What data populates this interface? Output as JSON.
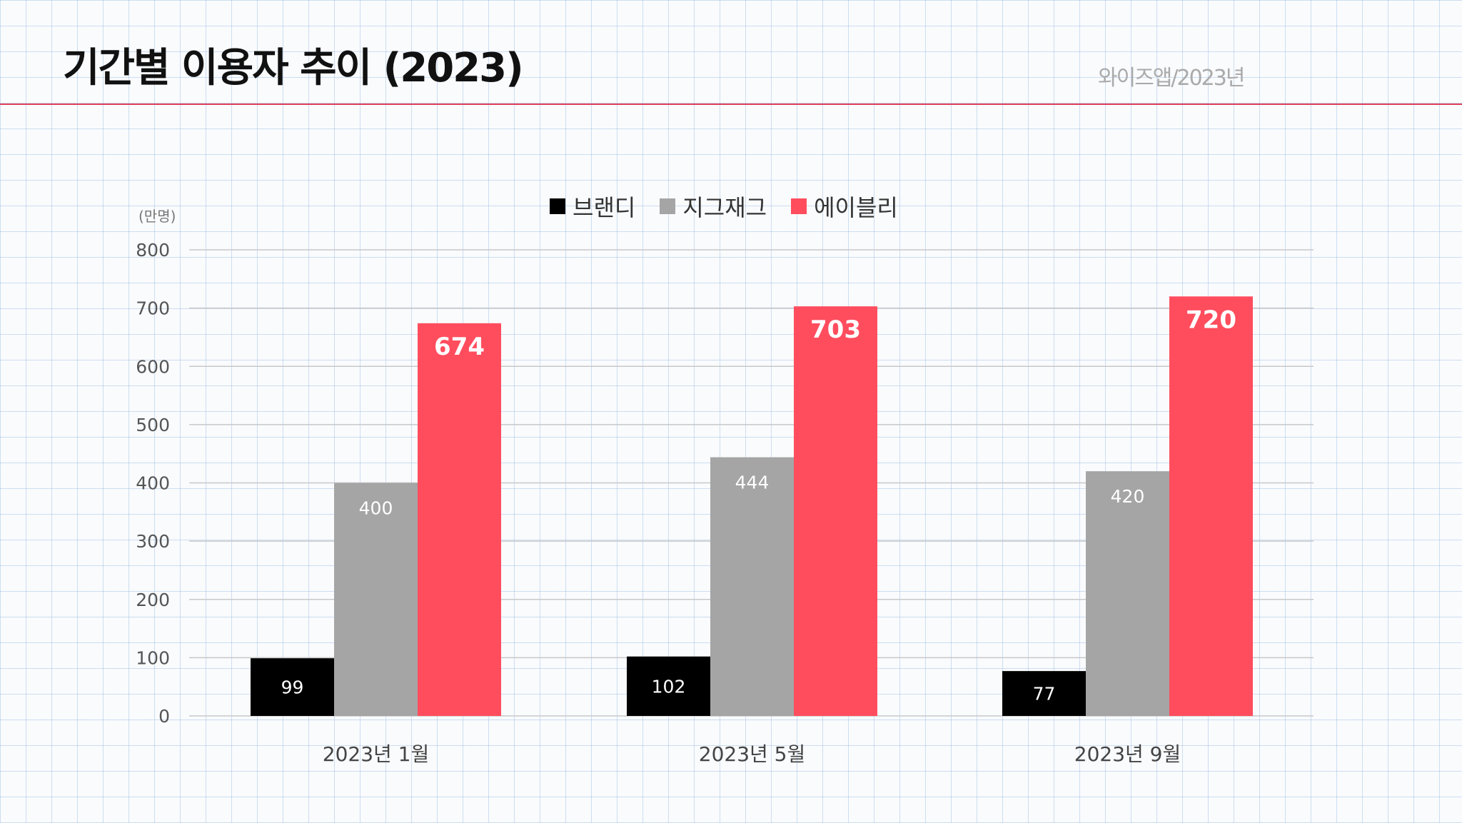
{
  "header": {
    "title": "기간별 이용자 추이 (2023)",
    "source": "와이즈앱/2023년"
  },
  "chart_data": {
    "type": "bar",
    "title": "기간별 이용자 추이 (2023)",
    "ylabel": "(만명)",
    "ylim": [
      0,
      800
    ],
    "yticks": [
      0,
      100,
      200,
      300,
      400,
      500,
      600,
      700,
      800
    ],
    "grid": true,
    "legend": "top-center",
    "categories": [
      "2023년 1월",
      "2023년 5월",
      "2023년 9월"
    ],
    "series": [
      {
        "name": "브랜디",
        "color": "#000000",
        "values": [
          99,
          102,
          77
        ]
      },
      {
        "name": "지그재그",
        "color": "#a5a5a5",
        "values": [
          400,
          444,
          420
        ]
      },
      {
        "name": "에이블리",
        "color": "#ff4d5e",
        "values": [
          674,
          703,
          720
        ]
      }
    ]
  }
}
